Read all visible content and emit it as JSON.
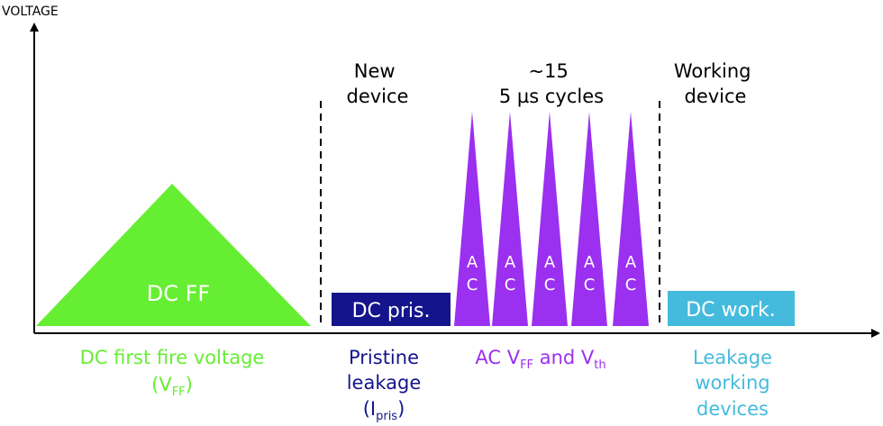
{
  "axis": {
    "y_label": "VOLTAGE"
  },
  "colors": {
    "green": "#66ee33",
    "navy": "#14148c",
    "purple": "#9b30f0",
    "cyan": "#44bbdd",
    "axis": "#000000"
  },
  "headers": {
    "new_device": [
      "New",
      "device"
    ],
    "cycles": [
      "~15",
      "5 µs cycles"
    ],
    "working_device": [
      "Working",
      "device"
    ]
  },
  "shapes": {
    "dc_ff_label": "DC FF",
    "dc_pris_label": "DC pris.",
    "dc_work_label": "DC work.",
    "ac_spike_letters": [
      "A",
      "C"
    ],
    "ac_spike_count": 5
  },
  "captions": {
    "dc_first_fire": {
      "line1": "DC first fire voltage",
      "line2_open": "(V",
      "line2_sub": "FF",
      "line2_close": ")"
    },
    "pristine": {
      "line1": "Pristine",
      "line2": "leakage",
      "line3_open": "(I",
      "line3_sub": "pris",
      "line3_close": ")"
    },
    "ac": {
      "p1": "AC V",
      "sub1": "FF",
      "p2": " and V",
      "sub2": "th"
    },
    "working": {
      "line1": "Leakage",
      "line2": "working",
      "line3": "devices"
    }
  }
}
